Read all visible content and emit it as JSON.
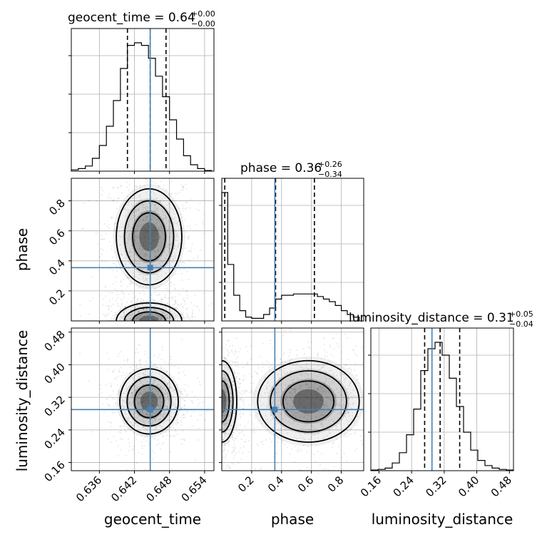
{
  "chart_data": {
    "type": "corner",
    "parameters": [
      "geocent_time",
      "phase",
      "luminosity_distance"
    ],
    "axis_labels": [
      "geocent_time",
      "phase",
      "luminosity_distance"
    ],
    "ranges": {
      "geocent_time": [
        0.6312,
        0.6556
      ],
      "phase": [
        0.0,
        0.95
      ],
      "luminosity_distance": [
        0.14,
        0.49
      ]
    },
    "ticks": {
      "geocent_time": [
        "0.636",
        "0.642",
        "0.648",
        "0.654"
      ],
      "phase": [
        "0.2",
        "0.4",
        "0.6",
        "0.8"
      ],
      "luminosity_distance": [
        "0.16",
        "0.24",
        "0.32",
        "0.40",
        "0.48"
      ]
    },
    "truths": {
      "geocent_time": 0.6447,
      "phase": 0.355,
      "luminosity_distance": 0.29
    },
    "truth_color": "#4682b4",
    "grid": true,
    "titles": [
      {
        "param": "geocent_time",
        "text": "geocent_time = 0.64",
        "plus": "+0.00",
        "minus": "−0.00"
      },
      {
        "param": "phase",
        "text": "phase = 0.36",
        "plus": "+0.26",
        "minus": "−0.34"
      },
      {
        "param": "luminosity_distance",
        "text": "luminosity_distance = 0.31",
        "plus": "+0.05",
        "minus": "−0.04"
      }
    ],
    "quantiles": {
      "geocent_time": [
        0.6408,
        0.6447,
        0.6474
      ],
      "phase": [
        0.02,
        0.36,
        0.62
      ],
      "luminosity_distance": [
        0.272,
        0.31,
        0.358
      ]
    },
    "histograms": {
      "geocent_time": {
        "edges": [
          0.6312,
          0.6324,
          0.6336,
          0.6348,
          0.636,
          0.6372,
          0.6384,
          0.6396,
          0.6408,
          0.642,
          0.6432,
          0.6444,
          0.6456,
          0.6468,
          0.648,
          0.6492,
          0.6504,
          0.6516,
          0.6528,
          0.654,
          0.6552
        ],
        "counts": [
          0.01,
          0.02,
          0.04,
          0.1,
          0.2,
          0.35,
          0.55,
          0.8,
          0.98,
          1.0,
          0.98,
          0.88,
          0.74,
          0.58,
          0.4,
          0.25,
          0.12,
          0.05,
          0.02,
          0.005
        ]
      },
      "phase": {
        "edges": [
          0.0,
          0.04,
          0.08,
          0.12,
          0.16,
          0.2,
          0.24,
          0.28,
          0.32,
          0.36,
          0.4,
          0.44,
          0.48,
          0.52,
          0.56,
          0.6,
          0.64,
          0.68,
          0.72,
          0.76,
          0.8,
          0.84,
          0.88,
          0.92
        ],
        "counts": [
          1.0,
          0.44,
          0.2,
          0.08,
          0.03,
          0.02,
          0.02,
          0.05,
          0.1,
          0.17,
          0.2,
          0.2,
          0.21,
          0.21,
          0.21,
          0.21,
          0.19,
          0.17,
          0.15,
          0.12,
          0.08,
          0.05,
          0.03
        ]
      },
      "luminosity_distance": {
        "edges": [
          0.14,
          0.1575,
          0.175,
          0.1925,
          0.21,
          0.2275,
          0.245,
          0.2625,
          0.28,
          0.2975,
          0.315,
          0.3325,
          0.35,
          0.3675,
          0.385,
          0.4025,
          0.42,
          0.4375,
          0.455,
          0.4725,
          0.49
        ],
        "counts": [
          0.005,
          0.01,
          0.02,
          0.06,
          0.14,
          0.28,
          0.48,
          0.78,
          0.95,
          1.0,
          0.9,
          0.72,
          0.5,
          0.3,
          0.16,
          0.08,
          0.04,
          0.02,
          0.01,
          0.005
        ]
      }
    },
    "density_blobs": {
      "phase_vs_geocent_time": [
        {
          "x": 0.6445,
          "y": 0.56,
          "sx": 0.0028,
          "sy": 0.16
        },
        {
          "x": 0.6445,
          "y": 0.0,
          "sx": 0.0028,
          "sy": 0.06
        }
      ],
      "luminosity_distance_vs_geocent_time": [
        {
          "x": 0.6445,
          "y": 0.31,
          "sx": 0.0025,
          "sy": 0.04
        }
      ],
      "luminosity_distance_vs_phase": [
        {
          "x": 0.58,
          "y": 0.31,
          "sx": 0.17,
          "sy": 0.05
        },
        {
          "x": 0.0,
          "y": 0.31,
          "sx": 0.05,
          "sy": 0.05
        }
      ]
    }
  }
}
